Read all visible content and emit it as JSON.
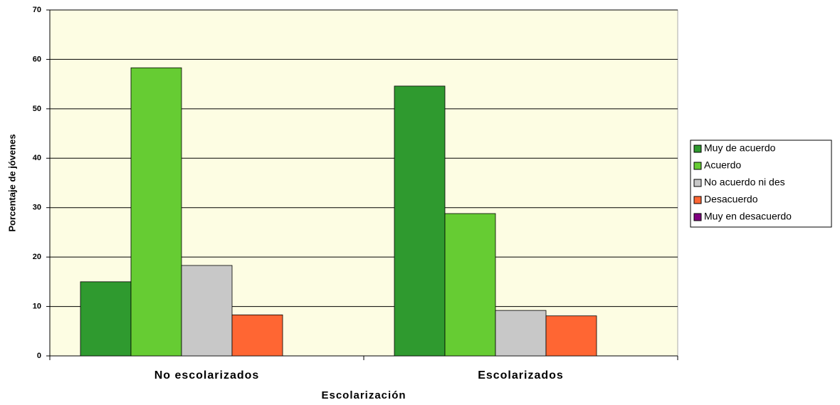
{
  "chart_data": {
    "type": "bar",
    "x_label": "Escolarización",
    "y_label": "Porcentaje de jóvenes",
    "categories": [
      "No escolarizados",
      "Escolarizados"
    ],
    "series": [
      {
        "name": "Muy de acuerdo",
        "color": "#2f9a2f",
        "values": [
          15,
          54.6
        ]
      },
      {
        "name": "Acuerdo",
        "color": "#66cc33",
        "values": [
          58.3,
          28.8
        ]
      },
      {
        "name": "No acuerdo ni des",
        "color": "#c8c8c8",
        "values": [
          18.3,
          9.2
        ]
      },
      {
        "name": "Desacuerdo",
        "color": "#ff6633",
        "values": [
          8.3,
          8.1
        ]
      },
      {
        "name": "Muy en desacuerdo",
        "color": "#800080",
        "values": [
          0,
          0
        ]
      }
    ],
    "ylim": [
      0,
      70
    ],
    "yticks": [
      0,
      10,
      20,
      30,
      40,
      50,
      60,
      70
    ],
    "grid": true,
    "legend": "right"
  }
}
